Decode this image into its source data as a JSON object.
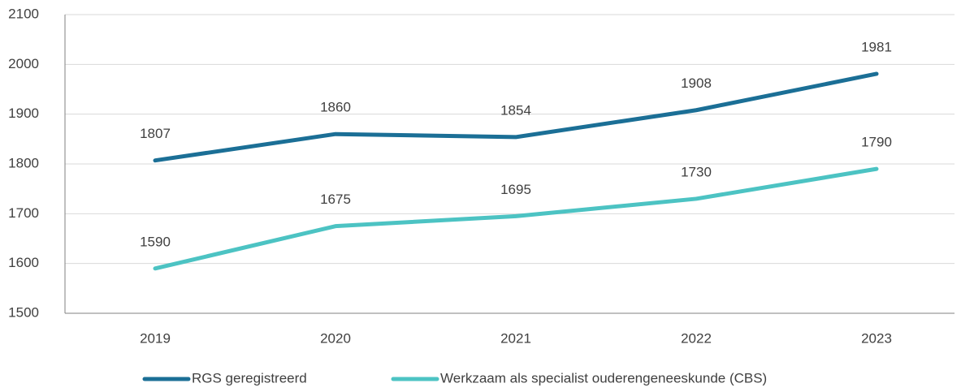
{
  "chart_data": {
    "type": "line",
    "categories": [
      "2019",
      "2020",
      "2021",
      "2022",
      "2023"
    ],
    "series": [
      {
        "name": "RGS geregistreerd",
        "color": "#1b6f96",
        "values": [
          1807,
          1860,
          1854,
          1908,
          1981
        ]
      },
      {
        "name": "Werkzaam als specialist ouderengeneeskunde (CBS)",
        "color": "#4cc3c3",
        "values": [
          1590,
          1675,
          1695,
          1730,
          1790
        ]
      }
    ],
    "ylim": [
      1500,
      2100
    ],
    "yticks": [
      1500,
      1600,
      1700,
      1800,
      1900,
      2000,
      2100
    ],
    "grid": true,
    "legend": "bottom"
  }
}
